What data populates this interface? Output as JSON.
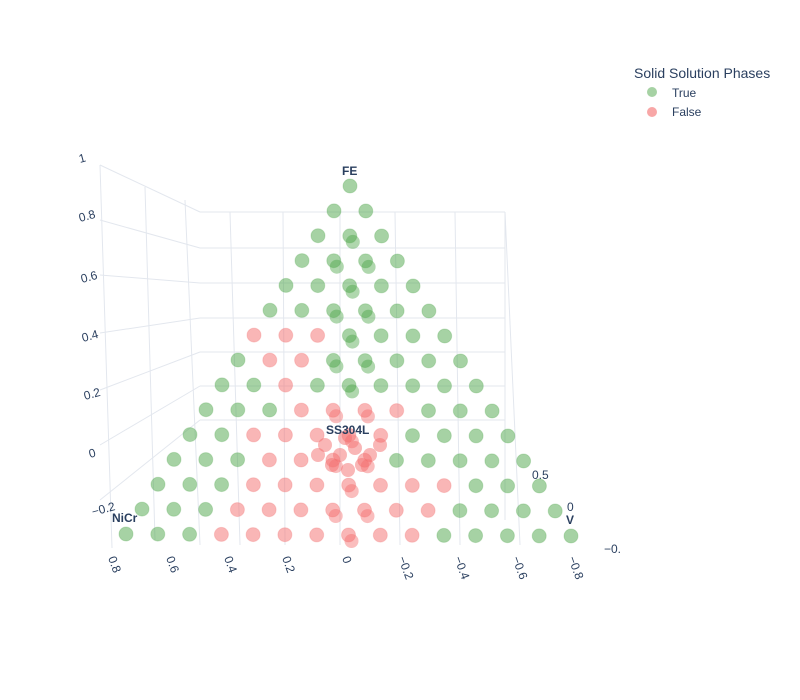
{
  "chart_data": {
    "type": "scatter",
    "title": "",
    "legend": {
      "title": "Solid Solution Phases",
      "placement": "top-right",
      "entries": [
        {
          "name": "True",
          "color": "#4ea64a"
        },
        {
          "name": "False",
          "color": "#f46d6d"
        }
      ]
    },
    "vertex_labels": {
      "top": "FE",
      "left": "NiCr",
      "right": "V",
      "center": "SS304L"
    },
    "z_axis_ticks": [
      "1",
      "0.8",
      "0.6",
      "0.4",
      "0.2",
      "0",
      "−0.2"
    ],
    "x_axis_ticks": [
      "0.8",
      "0.6",
      "0.4",
      "0.2",
      "0",
      "−0.2",
      "−0.4",
      "−0.6",
      "−0.8"
    ],
    "right_axis_ticks": [
      "0.5",
      "0",
      "−0."
    ],
    "grid": true,
    "ternary_divisions": 14,
    "series": [
      {
        "name": "True",
        "color": "#4ea64a",
        "description_rule": "outer FE-NiCr region, right edge and FE-V ridge"
      },
      {
        "name": "False",
        "color": "#f46d6d",
        "description_rule": "center and lower region near SS304L"
      }
    ]
  }
}
